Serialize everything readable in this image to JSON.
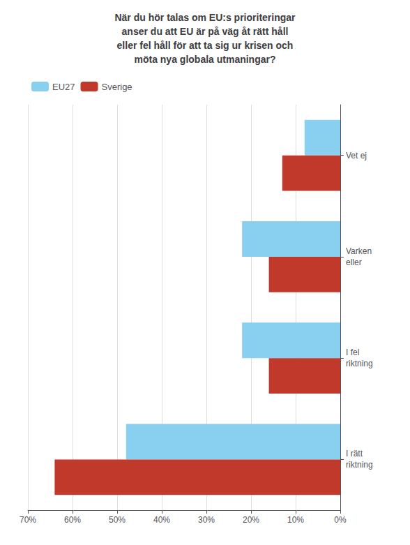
{
  "chart_data": {
    "type": "bar",
    "orientation": "horizontal",
    "title": "När du hör talas om EU:s prioriteringar\nanser du att EU är på väg åt rätt håll\neller fel håll för att ta sig ur krisen och\nmöta nya globala utmaningar?",
    "categories": [
      "I rätt\nriktning",
      "I fel\nriktning",
      "Varken\neller",
      "Vet ej"
    ],
    "series": [
      {
        "name": "EU27",
        "color": "#89CFF0",
        "values": [
          48,
          22,
          22,
          8
        ]
      },
      {
        "name": "Sverige",
        "color": "#C0392B",
        "values": [
          64,
          16,
          16,
          13
        ]
      }
    ],
    "xlim": [
      70,
      0
    ],
    "xticks": [
      {
        "value": 70,
        "label": "70%"
      },
      {
        "value": 60,
        "label": "60%"
      },
      {
        "value": 50,
        "label": "50%"
      },
      {
        "value": 40,
        "label": "40%"
      },
      {
        "value": 30,
        "label": "30%"
      },
      {
        "value": 20,
        "label": "20%"
      },
      {
        "value": 10,
        "label": "10%"
      },
      {
        "value": 0,
        "label": "0%"
      }
    ],
    "grid": true,
    "legend": "upper left"
  }
}
